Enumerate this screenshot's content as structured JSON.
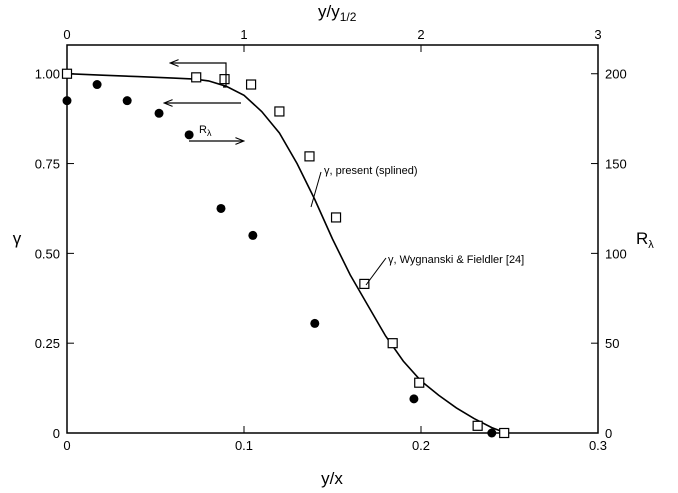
{
  "chart_data": {
    "type": "scatter",
    "x_bottom": {
      "label": "y/x",
      "range": [
        0,
        0.3
      ],
      "ticks": [
        0,
        0.1,
        0.2,
        0.3
      ],
      "tick_labels": [
        "0",
        "0.1",
        "0.2",
        "0.3"
      ]
    },
    "x_top": {
      "label_main": "y/y",
      "label_sub": "1/2",
      "range": [
        0,
        3
      ],
      "ticks": [
        0,
        1,
        2,
        3
      ],
      "tick_labels": [
        "0",
        "1",
        "2",
        "3"
      ]
    },
    "y_left": {
      "label": "γ",
      "range": [
        0,
        1.08
      ],
      "ticks": [
        0,
        0.25,
        0.5,
        0.75,
        1.0
      ],
      "tick_labels": [
        "0",
        "0.25",
        "0.50",
        "0.75",
        "1.00"
      ]
    },
    "y_right": {
      "label_main": "R",
      "label_sub": "λ",
      "range": [
        0,
        216
      ],
      "ticks": [
        0,
        50,
        100,
        150,
        200
      ],
      "tick_labels": [
        "0",
        "50",
        "100",
        "150",
        "200"
      ]
    },
    "series": [
      {
        "kind": "line",
        "axes": "bottom-left",
        "color": "#000000",
        "x": [
          0,
          0.02,
          0.04,
          0.06,
          0.072,
          0.08,
          0.09,
          0.1,
          0.11,
          0.12,
          0.13,
          0.14,
          0.15,
          0.16,
          0.17,
          0.18,
          0.19,
          0.2,
          0.21,
          0.22,
          0.23,
          0.24,
          0.248
        ],
        "y": [
          1.0,
          0.996,
          0.992,
          0.988,
          0.985,
          0.98,
          0.965,
          0.94,
          0.895,
          0.835,
          0.75,
          0.65,
          0.54,
          0.44,
          0.355,
          0.27,
          0.2,
          0.145,
          0.105,
          0.07,
          0.04,
          0.015,
          0.0
        ]
      },
      {
        "kind": "open-square",
        "axes": "bottom-left",
        "color": "#000000",
        "x": [
          0.0,
          0.073,
          0.089,
          0.104,
          0.12,
          0.137,
          0.152,
          0.168,
          0.184,
          0.199,
          0.232,
          0.247
        ],
        "y": [
          1.0,
          0.99,
          0.985,
          0.97,
          0.895,
          0.77,
          0.6,
          0.415,
          0.25,
          0.14,
          0.02,
          0.0
        ]
      },
      {
        "kind": "filled-circle",
        "axes": "top-right",
        "color": "#000000",
        "x": [
          0.0,
          0.17,
          0.34,
          0.52,
          0.69,
          0.87,
          1.05,
          1.4,
          1.96,
          2.4
        ],
        "y": [
          185,
          194,
          185,
          178,
          166,
          125,
          110,
          61,
          19,
          0
        ]
      }
    ],
    "annotations": {
      "present": "γ,  present (splined)",
      "wygnanski": "γ,  Wygnanski & Fieldler [24]",
      "r_main": "R",
      "r_sub": "λ"
    },
    "grid": false,
    "legend": "none"
  }
}
